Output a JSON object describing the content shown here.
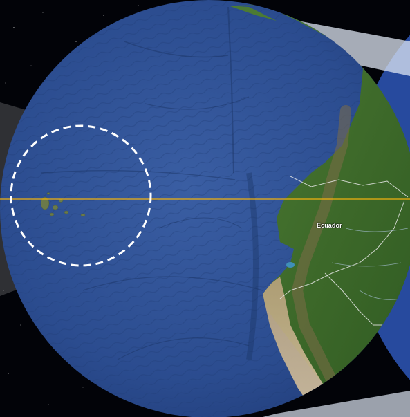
{
  "map": {
    "region_label": "Ecuador",
    "colors": {
      "ocean": "#2c4f93",
      "land": "#3f6f2c",
      "equator_line": "#f2b20f",
      "highlight_circle": "#ffffff",
      "space": "#020308"
    },
    "icons": {
      "highlight": "dashed-circle-icon",
      "equator": "equator-line-icon"
    }
  }
}
